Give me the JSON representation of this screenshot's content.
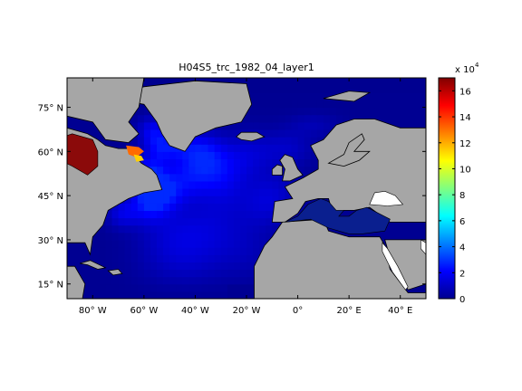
{
  "chart_data": {
    "type": "heatmap",
    "title": "H04S5_trc_1982_04_layer1",
    "projection": "lat-lon map of the North Atlantic",
    "xlim": [
      -90,
      50
    ],
    "ylim": [
      10,
      85
    ],
    "x_ticks": [
      {
        "value": -80,
        "label": "80° W"
      },
      {
        "value": -60,
        "label": "60° W"
      },
      {
        "value": -40,
        "label": "40° W"
      },
      {
        "value": -20,
        "label": "20° W"
      },
      {
        "value": 0,
        "label": "0°"
      },
      {
        "value": 20,
        "label": "20° E"
      },
      {
        "value": 40,
        "label": "40° E"
      }
    ],
    "y_ticks": [
      {
        "value": 15,
        "label": "15° N"
      },
      {
        "value": 30,
        "label": "30° N"
      },
      {
        "value": 45,
        "label": "45° N"
      },
      {
        "value": 60,
        "label": "60° N"
      },
      {
        "value": 75,
        "label": "75° N"
      }
    ],
    "colorbar": {
      "range": [
        0,
        170000
      ],
      "multiplier": "x 10",
      "exponent": "4",
      "ticks": [
        0,
        2,
        4,
        6,
        8,
        10,
        12,
        14,
        16
      ],
      "colormap": "jet"
    },
    "land_color": "#a6a6a6",
    "field_features": [
      {
        "feature": "Hudson Bay / Labrador coast",
        "level": "maximum, ~16-17 x 10^4"
      },
      {
        "feature": "Hudson Strait outflow",
        "level": "~5-8 x 10^4"
      },
      {
        "feature": "Labrador Sea / Grand Banks",
        "level": "~2-3 x 10^4"
      },
      {
        "feature": "Subpolar gyre / Irminger Sea",
        "level": "~1-1.5 x 10^4"
      },
      {
        "feature": "Subtropical Atlantic",
        "level": "~0.5-1 x 10^4"
      },
      {
        "feature": "Mediterranean / Arctic margins",
        "level": "~0"
      }
    ]
  }
}
